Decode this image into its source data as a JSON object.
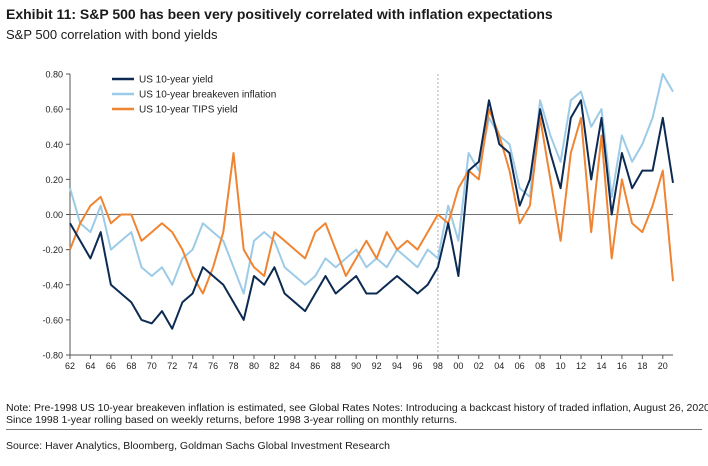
{
  "header": {
    "title": "Exhibit 11: S&P 500 has been very positively correlated with inflation expectations",
    "subtitle": "S&P 500 correlation with bond yields"
  },
  "footer": {
    "note_line1": "Note: Pre-1998 US 10-year breakeven inflation is estimated, see Global Rates Notes: Introducing a backcast history of traded inflation, August 26, 2020.",
    "note_line2": "Since 1998 1-year rolling based on weekly returns, before 1998 3-year rolling on monthly returns.",
    "source": "Source: Haver Analytics, Bloomberg, Goldman Sachs Global Investment Research"
  },
  "colors": {
    "us10y": "#0d2b52",
    "breakeven": "#9ccbe8",
    "tips": "#ef8533"
  },
  "chart_data": {
    "type": "line",
    "title": "S&P 500 correlation with bond yields",
    "xlabel": "",
    "ylabel": "",
    "xlim": [
      1962,
      2021
    ],
    "ylim": [
      -0.8,
      0.8
    ],
    "grid": false,
    "legend_position": "top-left",
    "x_ticks": [
      62,
      64,
      66,
      68,
      70,
      72,
      74,
      76,
      78,
      80,
      82,
      84,
      86,
      88,
      90,
      92,
      94,
      96,
      98,
      0,
      2,
      4,
      6,
      8,
      10,
      12,
      14,
      16,
      18,
      20
    ],
    "x_tick_labels": [
      "62",
      "64",
      "66",
      "68",
      "70",
      "72",
      "74",
      "76",
      "78",
      "80",
      "82",
      "84",
      "86",
      "88",
      "90",
      "92",
      "94",
      "96",
      "98",
      "00",
      "02",
      "04",
      "06",
      "08",
      "10",
      "12",
      "14",
      "16",
      "18",
      "20"
    ],
    "y_ticks": [
      -0.8,
      -0.6,
      -0.4,
      -0.2,
      0.0,
      0.2,
      0.4,
      0.6,
      0.8
    ],
    "y_tick_labels": [
      "-0.80",
      "-0.60",
      "-0.40",
      "-0.20",
      "0.00",
      "0.20",
      "0.40",
      "0.60",
      "0.80"
    ],
    "regime_break_year": 1998,
    "series": [
      {
        "name": "US 10-year yield",
        "x": [
          1962,
          1963,
          1964,
          1965,
          1966,
          1967,
          1968,
          1969,
          1970,
          1971,
          1972,
          1973,
          1974,
          1975,
          1976,
          1977,
          1978,
          1979,
          1980,
          1981,
          1982,
          1983,
          1984,
          1985,
          1986,
          1987,
          1988,
          1989,
          1990,
          1991,
          1992,
          1993,
          1994,
          1995,
          1996,
          1997,
          1998,
          1999,
          2000,
          2001,
          2002,
          2003,
          2004,
          2005,
          2006,
          2007,
          2008,
          2009,
          2010,
          2011,
          2012,
          2013,
          2014,
          2015,
          2016,
          2017,
          2018,
          2019,
          2020,
          2021
        ],
        "values": [
          -0.05,
          -0.15,
          -0.25,
          -0.1,
          -0.4,
          -0.45,
          -0.5,
          -0.6,
          -0.62,
          -0.55,
          -0.65,
          -0.5,
          -0.45,
          -0.3,
          -0.35,
          -0.4,
          -0.5,
          -0.6,
          -0.35,
          -0.4,
          -0.3,
          -0.45,
          -0.5,
          -0.55,
          -0.45,
          -0.35,
          -0.45,
          -0.4,
          -0.35,
          -0.45,
          -0.45,
          -0.4,
          -0.35,
          -0.4,
          -0.45,
          -0.4,
          -0.3,
          -0.05,
          -0.35,
          0.25,
          0.3,
          0.65,
          0.4,
          0.35,
          0.05,
          0.2,
          0.6,
          0.35,
          0.15,
          0.55,
          0.65,
          0.2,
          0.55,
          0.0,
          0.35,
          0.15,
          0.25,
          0.25,
          0.55,
          0.18
        ]
      },
      {
        "name": "US 10-year breakeven inflation",
        "x": [
          1962,
          1963,
          1964,
          1965,
          1966,
          1967,
          1968,
          1969,
          1970,
          1971,
          1972,
          1973,
          1974,
          1975,
          1976,
          1977,
          1978,
          1979,
          1980,
          1981,
          1982,
          1983,
          1984,
          1985,
          1986,
          1987,
          1988,
          1989,
          1990,
          1991,
          1992,
          1993,
          1994,
          1995,
          1996,
          1997,
          1998,
          1999,
          2000,
          2001,
          2002,
          2003,
          2004,
          2005,
          2006,
          2007,
          2008,
          2009,
          2010,
          2011,
          2012,
          2013,
          2014,
          2015,
          2016,
          2017,
          2018,
          2019,
          2020,
          2021
        ],
        "values": [
          0.15,
          -0.05,
          -0.1,
          0.05,
          -0.2,
          -0.15,
          -0.1,
          -0.3,
          -0.35,
          -0.3,
          -0.4,
          -0.25,
          -0.2,
          -0.05,
          -0.1,
          -0.15,
          -0.3,
          -0.45,
          -0.15,
          -0.1,
          -0.15,
          -0.3,
          -0.35,
          -0.4,
          -0.35,
          -0.25,
          -0.3,
          -0.25,
          -0.2,
          -0.3,
          -0.25,
          -0.3,
          -0.2,
          -0.25,
          -0.3,
          -0.2,
          -0.25,
          0.05,
          -0.15,
          0.35,
          0.25,
          0.55,
          0.45,
          0.4,
          0.15,
          0.1,
          0.65,
          0.45,
          0.3,
          0.65,
          0.7,
          0.5,
          0.6,
          0.1,
          0.45,
          0.3,
          0.4,
          0.55,
          0.8,
          0.7
        ]
      },
      {
        "name": "US 10-year TIPS yield",
        "x": [
          1962,
          1963,
          1964,
          1965,
          1966,
          1967,
          1968,
          1969,
          1970,
          1971,
          1972,
          1973,
          1974,
          1975,
          1976,
          1977,
          1978,
          1979,
          1980,
          1981,
          1982,
          1983,
          1984,
          1985,
          1986,
          1987,
          1988,
          1989,
          1990,
          1991,
          1992,
          1993,
          1994,
          1995,
          1996,
          1997,
          1998,
          1999,
          2000,
          2001,
          2002,
          2003,
          2004,
          2005,
          2006,
          2007,
          2008,
          2009,
          2010,
          2011,
          2012,
          2013,
          2014,
          2015,
          2016,
          2017,
          2018,
          2019,
          2020,
          2021
        ],
        "values": [
          -0.2,
          -0.05,
          0.05,
          0.1,
          -0.05,
          0.0,
          0.0,
          -0.15,
          -0.1,
          -0.05,
          -0.1,
          -0.2,
          -0.35,
          -0.45,
          -0.3,
          -0.1,
          0.35,
          -0.2,
          -0.3,
          -0.35,
          -0.1,
          -0.15,
          -0.2,
          -0.25,
          -0.1,
          -0.05,
          -0.2,
          -0.35,
          -0.25,
          -0.15,
          -0.25,
          -0.1,
          -0.2,
          -0.15,
          -0.2,
          -0.1,
          0.0,
          -0.05,
          0.15,
          0.25,
          0.2,
          0.6,
          0.45,
          0.25,
          -0.05,
          0.05,
          0.55,
          0.2,
          -0.15,
          0.35,
          0.55,
          -0.1,
          0.45,
          -0.25,
          0.2,
          -0.05,
          -0.1,
          0.05,
          0.25,
          -0.38
        ]
      }
    ]
  }
}
